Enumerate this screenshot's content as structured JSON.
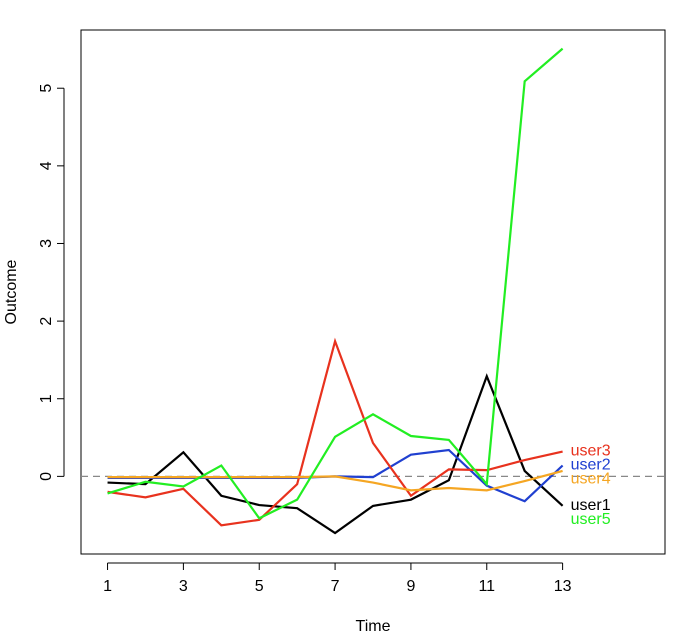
{
  "chart_data": {
    "type": "line",
    "title": "",
    "xlabel": "Time",
    "ylabel": "Outcome",
    "x": [
      1,
      2,
      3,
      4,
      5,
      6,
      7,
      8,
      9,
      10,
      11,
      12,
      13
    ],
    "xticks": [
      "1",
      "3",
      "5",
      "7",
      "9",
      "11",
      "13"
    ],
    "yticks": [
      "0",
      "1",
      "2",
      "3",
      "4",
      "5"
    ],
    "xlim": [
      0.3,
      15.7
    ],
    "ylim": [
      -1.0,
      5.75
    ],
    "grid": false,
    "reference_line": {
      "y": 0,
      "style": "dashed",
      "color": "#888888"
    },
    "series": [
      {
        "name": "user1",
        "color": "#000000",
        "values": [
          -0.08,
          -0.1,
          0.31,
          -0.25,
          -0.37,
          -0.41,
          -0.73,
          -0.38,
          -0.3,
          -0.05,
          1.29,
          0.07,
          -0.38
        ]
      },
      {
        "name": "user2",
        "color": "#2040d0",
        "values": [
          -0.02,
          -0.02,
          -0.02,
          -0.02,
          -0.02,
          -0.02,
          0.0,
          -0.01,
          0.28,
          0.34,
          -0.12,
          -0.32,
          0.14
        ]
      },
      {
        "name": "user3",
        "color": "#e8321e",
        "values": [
          -0.2,
          -0.27,
          -0.16,
          -0.63,
          -0.56,
          -0.1,
          1.74,
          0.43,
          -0.25,
          0.09,
          0.08,
          0.21,
          0.32
        ]
      },
      {
        "name": "user4",
        "color": "#f5a623",
        "values": [
          -0.01,
          -0.01,
          -0.01,
          -0.01,
          -0.01,
          -0.01,
          0.0,
          -0.08,
          -0.18,
          -0.15,
          -0.18,
          -0.06,
          0.07
        ]
      },
      {
        "name": "user5",
        "color": "#22ee22",
        "values": [
          -0.22,
          -0.07,
          -0.13,
          0.14,
          -0.54,
          -0.3,
          0.51,
          0.8,
          0.52,
          0.47,
          -0.1,
          5.09,
          5.51
        ]
      }
    ],
    "label_order": [
      "user3",
      "user2",
      "user4",
      "user1",
      "user5"
    ]
  }
}
